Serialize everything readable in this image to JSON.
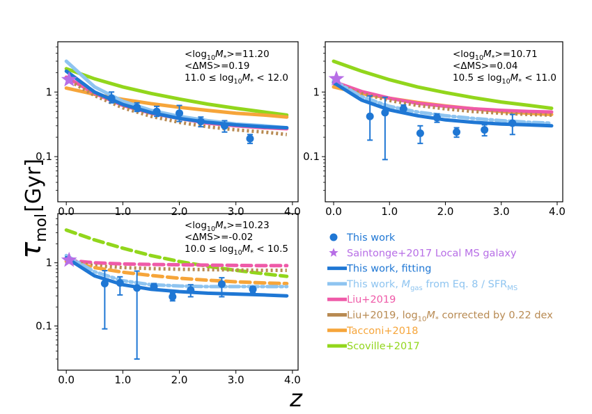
{
  "figure": {
    "ylabel_sym": "τ",
    "ylabel_sub": "mol",
    "ylabel_unit": "[Gyr]",
    "xlabel": "z",
    "colors": {
      "this_work": "#1f77d4",
      "saintonge": "#b76ee6",
      "fit_alt": "#8ec4f0",
      "liu": "#ef5aa8",
      "liu_corr": "#b88a52",
      "tacconi": "#f6a53a",
      "scoville": "#92d61c"
    }
  },
  "legend": [
    {
      "key": "this_work",
      "label": "This work",
      "marker": "point"
    },
    {
      "key": "saintonge",
      "label": "Saintonge+2017 Local MS galaxy",
      "marker": "star"
    },
    {
      "key": "this_work",
      "label": "This work, fitting",
      "marker": "line"
    },
    {
      "key": "fit_alt",
      "label_pre": "This work, ",
      "label_sym": "M",
      "label_sub": "gas",
      "label_post": " from Eq. 8 / SFR",
      "label_sub2": "MS",
      "marker": "line"
    },
    {
      "key": "liu",
      "label": "Liu+2019",
      "marker": "line"
    },
    {
      "key": "liu_corr",
      "label_pre": "Liu+2019, log",
      "label_sub": "10",
      "label_sym": "M",
      "label_sub2": "*",
      "label_post": " corrected by 0.22 dex",
      "marker": "line"
    },
    {
      "key": "tacconi",
      "label": "Tacconi+2018",
      "marker": "line"
    },
    {
      "key": "scoville",
      "label": "Scoville+2017",
      "marker": "line"
    }
  ],
  "chart_data": [
    {
      "type": "scatter",
      "panel": "top-left",
      "xlim": [
        -0.15,
        4.1
      ],
      "ylim": [
        0.02,
        6.0
      ],
      "yscale": "log",
      "xticks": [
        "0.0",
        "1.0",
        "2.0",
        "3.0",
        "4.0"
      ],
      "yticks": [
        "0.1",
        "1"
      ],
      "annotations": [
        {
          "a": "<log",
          "sub": "10",
          "m": "M",
          "ms": "*",
          "b": ">=11.20"
        },
        {
          "a": "<ΔMS>=0.19"
        },
        {
          "a": "11.0 ≤ log",
          "sub": "10",
          "m": "M",
          "ms": "*",
          "b": " < 12.0"
        }
      ],
      "points": {
        "x": [
          0.8,
          1.25,
          1.6,
          2.0,
          2.38,
          2.8,
          3.25
        ],
        "y": [
          0.8,
          0.58,
          0.5,
          0.47,
          0.35,
          0.3,
          0.19
        ],
        "yerr_low": [
          0.12,
          0.08,
          0.08,
          0.12,
          0.06,
          0.06,
          0.03
        ],
        "yerr_high": [
          0.2,
          0.1,
          0.1,
          0.15,
          0.06,
          0.06,
          0.03
        ]
      },
      "star": {
        "x": 0.05,
        "y": 1.55
      },
      "series": [
        {
          "key": "scoville",
          "style": "solid",
          "x": [
            0.0,
            0.5,
            1.0,
            1.5,
            2.0,
            2.5,
            3.0,
            3.5,
            3.9
          ],
          "y": [
            2.3,
            1.6,
            1.2,
            0.95,
            0.78,
            0.65,
            0.56,
            0.49,
            0.44
          ]
        },
        {
          "key": "tacconi",
          "style": "solid",
          "x": [
            0.0,
            0.5,
            1.0,
            1.5,
            2.0,
            2.5,
            3.0,
            3.5,
            3.9
          ],
          "y": [
            1.15,
            0.92,
            0.77,
            0.66,
            0.58,
            0.52,
            0.47,
            0.44,
            0.41
          ]
        },
        {
          "key": "fit_alt",
          "style": "solid",
          "x": [
            0.0,
            0.5,
            1.0,
            1.5,
            2.0,
            2.5,
            3.0,
            3.5,
            3.9
          ],
          "y": [
            3.0,
            1.2,
            0.72,
            0.52,
            0.42,
            0.36,
            0.32,
            0.3,
            0.28
          ]
        },
        {
          "key": "liu",
          "style": "solid",
          "x": [
            0.0,
            0.5,
            1.0,
            1.5,
            2.0,
            2.5,
            3.0,
            3.5,
            3.9
          ],
          "y": [
            1.7,
            0.95,
            0.62,
            0.47,
            0.39,
            0.33,
            0.3,
            0.28,
            0.27
          ]
        },
        {
          "key": "liu_corr",
          "style": "dotted",
          "x": [
            0.0,
            0.5,
            1.0,
            1.5,
            2.0,
            2.5,
            3.0,
            3.5,
            3.9
          ],
          "y": [
            1.6,
            0.88,
            0.57,
            0.42,
            0.34,
            0.29,
            0.26,
            0.24,
            0.22
          ]
        },
        {
          "key": "this_work",
          "style": "solid",
          "x": [
            0.0,
            0.5,
            1.0,
            1.5,
            2.0,
            2.5,
            3.0,
            3.5,
            3.9
          ],
          "y": [
            2.1,
            1.0,
            0.64,
            0.48,
            0.39,
            0.34,
            0.31,
            0.29,
            0.28
          ]
        }
      ]
    },
    {
      "type": "scatter",
      "panel": "top-right",
      "xlim": [
        -0.15,
        4.1
      ],
      "ylim": [
        0.02,
        6.0
      ],
      "yscale": "log",
      "xticks": [
        "0.0",
        "1.0",
        "2.0",
        "3.0",
        "4.0"
      ],
      "yticks": [
        "0.1",
        "1"
      ],
      "annotations": [
        {
          "a": "<log",
          "sub": "10",
          "m": "M",
          "ms": "*",
          "b": ">=10.71"
        },
        {
          "a": "<ΔMS>=0.04"
        },
        {
          "a": "10.5 ≤ log",
          "sub": "10",
          "m": "M",
          "ms": "*",
          "b": " < 11.0"
        }
      ],
      "points": {
        "x": [
          0.65,
          0.92,
          1.25,
          1.55,
          1.85,
          2.2,
          2.7,
          3.2
        ],
        "y": [
          0.42,
          0.48,
          0.55,
          0.23,
          0.4,
          0.24,
          0.26,
          0.33
        ],
        "yerr_low": [
          0.24,
          0.39,
          0.07,
          0.07,
          0.06,
          0.04,
          0.05,
          0.11
        ],
        "yerr_high": [
          0.45,
          0.35,
          0.08,
          0.07,
          0.06,
          0.04,
          0.05,
          0.12
        ]
      },
      "star": {
        "x": 0.05,
        "y": 1.6
      },
      "series": [
        {
          "key": "scoville",
          "style": "solid",
          "x": [
            0.0,
            0.5,
            1.0,
            1.5,
            2.0,
            2.5,
            3.0,
            3.5,
            3.9
          ],
          "y": [
            3.0,
            2.1,
            1.55,
            1.2,
            0.98,
            0.82,
            0.7,
            0.62,
            0.56
          ]
        },
        {
          "key": "tacconi",
          "style": "solid",
          "x": [
            0.0,
            0.5,
            1.0,
            1.5,
            2.0,
            2.5,
            3.0,
            3.5,
            3.9
          ],
          "y": [
            1.2,
            0.95,
            0.8,
            0.69,
            0.61,
            0.55,
            0.5,
            0.47,
            0.45
          ]
        },
        {
          "key": "liu",
          "style": "solid",
          "x": [
            0.0,
            0.5,
            1.0,
            1.5,
            2.0,
            2.5,
            3.0,
            3.5,
            3.9
          ],
          "y": [
            1.45,
            1.02,
            0.8,
            0.67,
            0.6,
            0.55,
            0.52,
            0.5,
            0.49
          ]
        },
        {
          "key": "liu_corr",
          "style": "dotted",
          "x": [
            0.0,
            0.5,
            1.0,
            1.5,
            2.0,
            2.5,
            3.0,
            3.5,
            3.9
          ],
          "y": [
            1.35,
            0.95,
            0.74,
            0.62,
            0.55,
            0.5,
            0.47,
            0.45,
            0.44
          ]
        },
        {
          "key": "fit_alt",
          "style": "dashdot",
          "x": [
            0.0,
            0.5,
            1.0,
            1.5,
            2.0,
            2.5,
            3.0,
            3.5,
            3.9
          ],
          "y": [
            1.5,
            0.85,
            0.6,
            0.49,
            0.43,
            0.39,
            0.36,
            0.34,
            0.33
          ]
        },
        {
          "key": "this_work",
          "style": "solid",
          "x": [
            0.0,
            0.5,
            1.0,
            1.5,
            2.0,
            2.5,
            3.0,
            3.5,
            3.9
          ],
          "y": [
            1.4,
            0.75,
            0.53,
            0.43,
            0.37,
            0.34,
            0.32,
            0.31,
            0.3
          ]
        }
      ]
    },
    {
      "type": "scatter",
      "panel": "bottom-left",
      "xlim": [
        -0.15,
        4.1
      ],
      "ylim": [
        0.02,
        6.0
      ],
      "yscale": "log",
      "xticks": [
        "0.0",
        "1.0",
        "2.0",
        "3.0",
        "4.0"
      ],
      "yticks": [
        "0.1",
        "1"
      ],
      "annotations": [
        {
          "a": "<log",
          "sub": "10",
          "m": "M",
          "ms": "*",
          "b": ">=10.23"
        },
        {
          "a": "<ΔMS>=-0.02"
        },
        {
          "a": "10.0 ≤ log",
          "sub": "10",
          "m": "M",
          "ms": "*",
          "b": " < 10.5"
        }
      ],
      "points": {
        "x": [
          0.68,
          0.95,
          1.25,
          1.55,
          1.88,
          2.2,
          2.75,
          3.3
        ],
        "y": [
          0.47,
          0.48,
          0.4,
          0.42,
          0.29,
          0.37,
          0.46,
          0.38
        ],
        "yerr_low": [
          0.38,
          0.17,
          0.37,
          0.05,
          0.04,
          0.08,
          0.17,
          0.04
        ],
        "yerr_high": [
          0.28,
          0.12,
          0.34,
          0.05,
          0.04,
          0.08,
          0.12,
          0.04
        ]
      },
      "star": {
        "x": 0.05,
        "y": 1.1
      },
      "series": [
        {
          "key": "scoville",
          "style": "dashed",
          "x": [
            0.0,
            0.5,
            1.0,
            1.5,
            2.0,
            2.5,
            3.0,
            3.5,
            3.9
          ],
          "y": [
            3.3,
            2.3,
            1.7,
            1.3,
            1.05,
            0.88,
            0.76,
            0.67,
            0.61
          ]
        },
        {
          "key": "liu",
          "style": "dashed",
          "x": [
            0.0,
            0.5,
            1.0,
            1.5,
            2.0,
            2.5,
            3.0,
            3.5,
            3.9
          ],
          "y": [
            1.1,
            1.0,
            0.96,
            0.94,
            0.93,
            0.92,
            0.91,
            0.9,
            0.9
          ]
        },
        {
          "key": "liu_corr",
          "style": "dotted",
          "x": [
            0.0,
            0.5,
            1.0,
            1.5,
            2.0,
            2.5,
            3.0,
            3.5,
            3.9
          ],
          "y": [
            1.05,
            0.9,
            0.84,
            0.81,
            0.79,
            0.78,
            0.77,
            0.76,
            0.76
          ]
        },
        {
          "key": "tacconi",
          "style": "dashed",
          "x": [
            0.0,
            0.5,
            1.0,
            1.5,
            2.0,
            2.5,
            3.0,
            3.5,
            3.9
          ],
          "y": [
            1.05,
            0.84,
            0.71,
            0.63,
            0.57,
            0.53,
            0.5,
            0.48,
            0.47
          ]
        },
        {
          "key": "fit_alt",
          "style": "dashdot",
          "x": [
            0.0,
            0.5,
            1.0,
            1.5,
            2.0,
            2.5,
            3.0,
            3.5,
            3.9
          ],
          "y": [
            1.3,
            0.72,
            0.52,
            0.45,
            0.43,
            0.42,
            0.42,
            0.42,
            0.42
          ]
        },
        {
          "key": "this_work",
          "style": "solid",
          "x": [
            0.0,
            0.5,
            1.0,
            1.5,
            2.0,
            2.5,
            3.0,
            3.5,
            3.9
          ],
          "y": [
            1.2,
            0.62,
            0.45,
            0.38,
            0.35,
            0.33,
            0.32,
            0.31,
            0.3
          ]
        }
      ]
    }
  ]
}
